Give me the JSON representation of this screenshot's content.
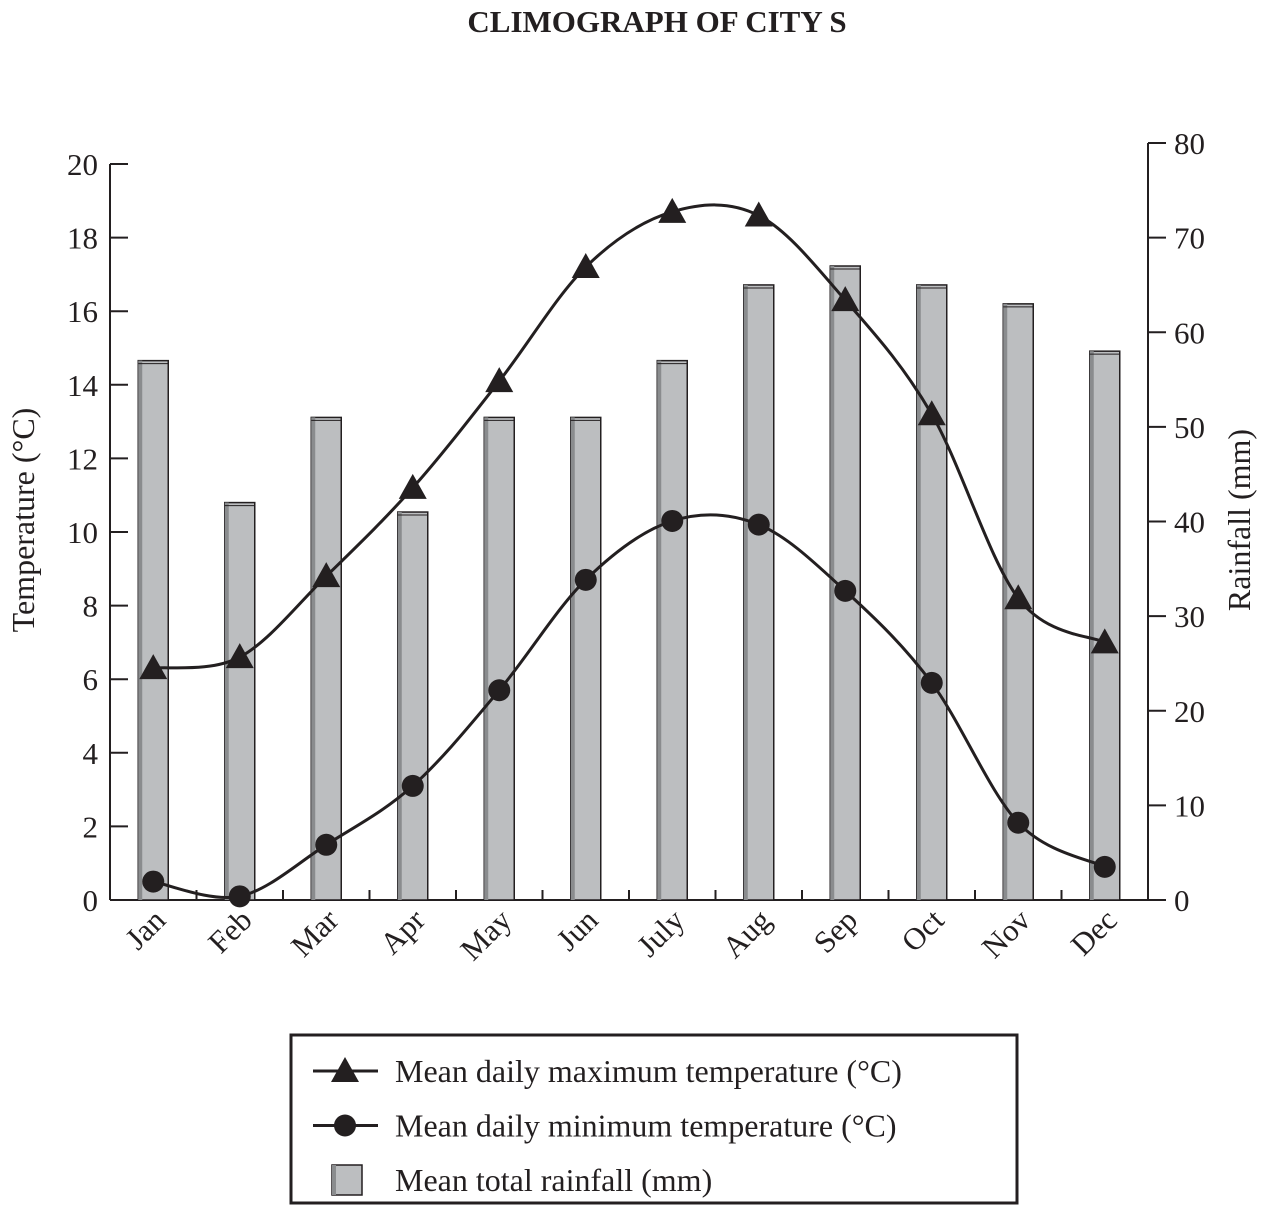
{
  "chart_data": {
    "type": "combo",
    "title": "CLIMOGRAPH OF CITY S",
    "y_label": "Temperature (°C)",
    "y2_label": "Rainfall (mm)",
    "categories": [
      "Jan",
      "Feb",
      "Mar",
      "Apr",
      "May",
      "Jun",
      "July",
      "Aug",
      "Sep",
      "Oct",
      "Nov",
      "Dec"
    ],
    "ylim": [
      0,
      20
    ],
    "yticks": [
      0,
      2,
      4,
      6,
      8,
      10,
      12,
      14,
      16,
      18,
      20
    ],
    "y2lim": [
      0,
      80
    ],
    "y2ticks": [
      0,
      10,
      20,
      30,
      40,
      50,
      60,
      70,
      80
    ],
    "series": [
      {
        "name": "Mean daily maximum temperature (°C)",
        "type": "line",
        "marker": "triangle",
        "color": "#231f20",
        "values": [
          6.3,
          6.6,
          8.8,
          11.2,
          14.1,
          17.2,
          18.7,
          18.6,
          16.3,
          13.2,
          8.2,
          7.0
        ]
      },
      {
        "name": "Mean daily minimum temperature (°C)",
        "type": "line",
        "marker": "circle",
        "color": "#231f20",
        "values": [
          0.5,
          0.1,
          1.5,
          3.1,
          5.7,
          8.7,
          10.3,
          10.2,
          8.4,
          5.9,
          2.1,
          0.9
        ]
      },
      {
        "name": "Mean total rainfall (mm)",
        "type": "bar",
        "axis": "y2",
        "color": "#bcbec0",
        "values": [
          57,
          42,
          51,
          41,
          51,
          51,
          57,
          65,
          67,
          65,
          63,
          58
        ]
      }
    ]
  }
}
